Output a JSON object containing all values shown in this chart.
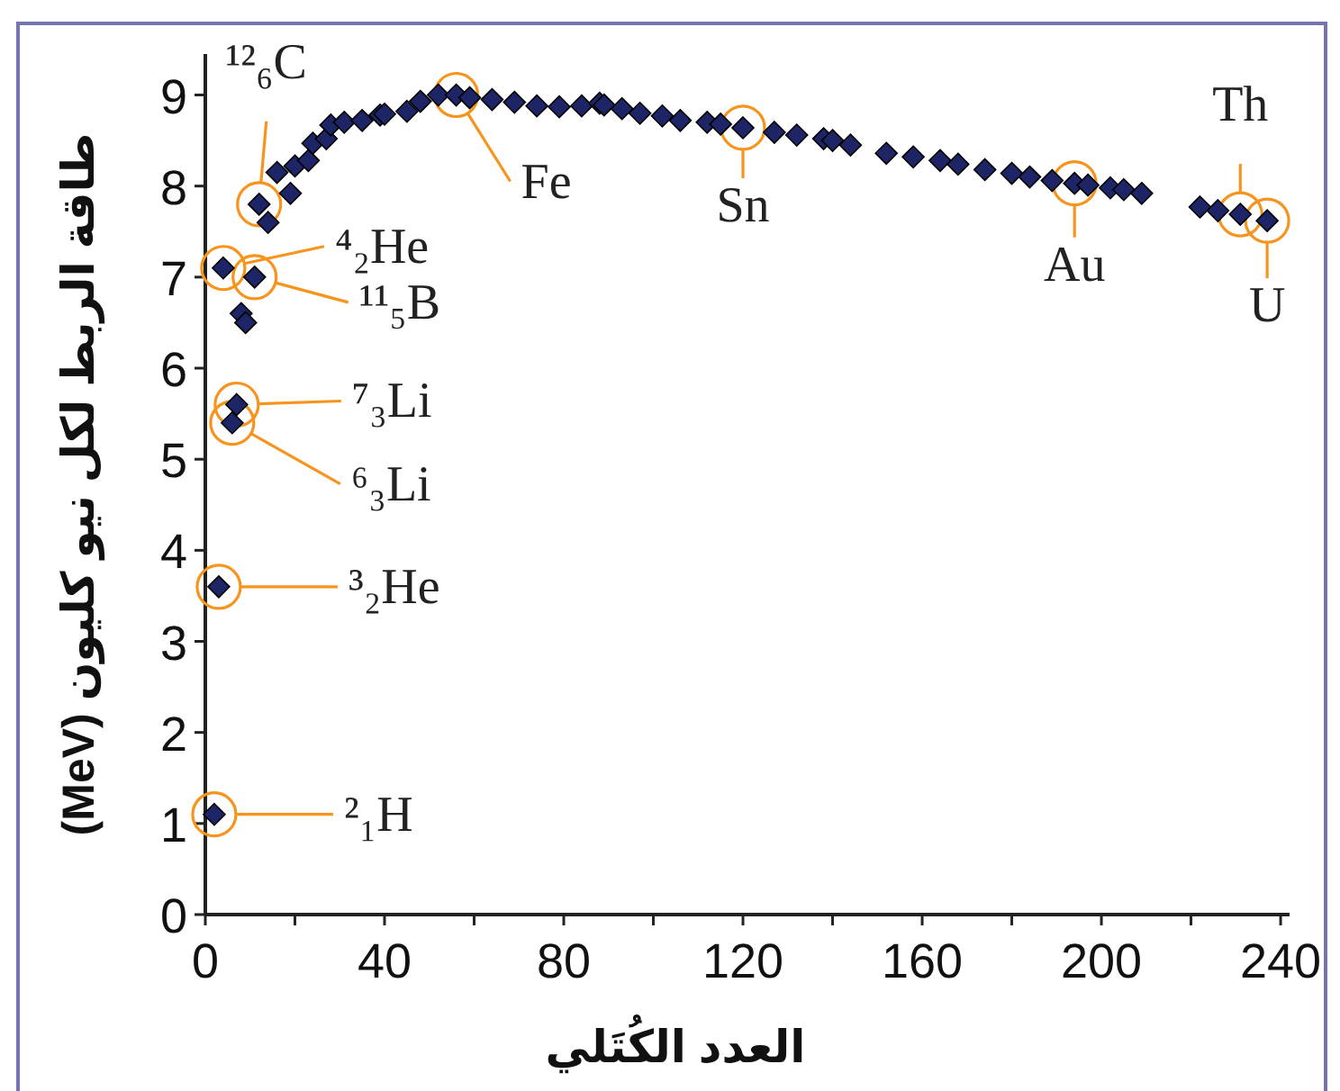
{
  "chart_data": {
    "type": "scatter",
    "xlabel": "العدد الكُتَلي",
    "ylabel": "طاقة الربط لكل نيو كليون (MeV)",
    "x": [
      2,
      3,
      4,
      6,
      7,
      8,
      9,
      11,
      12,
      14,
      16,
      19,
      20,
      23,
      24,
      27,
      28,
      31,
      35,
      39,
      40,
      45,
      48,
      52,
      56,
      59,
      64,
      69,
      74,
      79,
      84,
      88,
      89,
      93,
      97,
      102,
      106,
      112,
      115,
      120,
      127,
      132,
      138,
      140,
      144,
      152,
      158,
      164,
      168,
      174,
      180,
      184,
      189,
      194,
      197,
      202,
      205,
      209,
      222,
      226,
      231,
      237
    ],
    "series": [
      {
        "color": "#1e2566",
        "values": [
          1.1,
          3.6,
          7.1,
          5.4,
          5.6,
          6.6,
          6.5,
          7.0,
          7.8,
          7.6,
          8.15,
          7.92,
          8.22,
          8.28,
          8.47,
          8.52,
          8.67,
          8.7,
          8.72,
          8.78,
          8.79,
          8.82,
          8.93,
          9.0,
          9.0,
          8.97,
          8.95,
          8.92,
          8.88,
          8.87,
          8.88,
          8.91,
          8.89,
          8.85,
          8.8,
          8.77,
          8.72,
          8.7,
          8.68,
          8.64,
          8.59,
          8.56,
          8.52,
          8.5,
          8.45,
          8.36,
          8.32,
          8.28,
          8.24,
          8.18,
          8.14,
          8.1,
          8.06,
          8.03,
          8.01,
          7.98,
          7.96,
          7.92,
          7.77,
          7.73,
          7.69,
          7.62
        ]
      }
    ],
    "marker": "diamond",
    "grid": false,
    "xlim": [
      0,
      242
    ],
    "ylim": [
      0,
      9.45
    ],
    "xticks": [
      0,
      {
        "value": 20,
        "label": null
      },
      40,
      {
        "value": 60,
        "label": null
      },
      80,
      {
        "value": 100,
        "label": null
      },
      120,
      {
        "value": 140,
        "label": null
      },
      160,
      {
        "value": 180,
        "label": null
      },
      200,
      {
        "value": 220,
        "label": null
      },
      240
    ],
    "yticks": [
      0,
      1,
      2,
      3,
      4,
      5,
      6,
      7,
      8,
      9
    ],
    "annotations": [
      {
        "text": "²₁H",
        "x": 2,
        "y": 1.1
      },
      {
        "text": "³₂He",
        "x": 3,
        "y": 3.6
      },
      {
        "text": "⁴₂He",
        "x": 4,
        "y": 7.1
      },
      {
        "text": "⁶₃Li",
        "x": 6,
        "y": 5.4
      },
      {
        "text": "⁷₃Li",
        "x": 7,
        "y": 5.6
      },
      {
        "text": "¹¹₅B",
        "x": 11,
        "y": 7.0
      },
      {
        "text": "¹²₆C",
        "x": 12,
        "y": 7.8
      },
      {
        "text": "Fe",
        "x": 56,
        "y": 9.0
      },
      {
        "text": "Sn",
        "x": 120,
        "y": 8.64
      },
      {
        "text": "Au",
        "x": 194,
        "y": 8.03
      },
      {
        "text": "Th",
        "x": 231,
        "y": 7.69
      },
      {
        "text": "U",
        "x": 237,
        "y": 7.62
      }
    ]
  }
}
